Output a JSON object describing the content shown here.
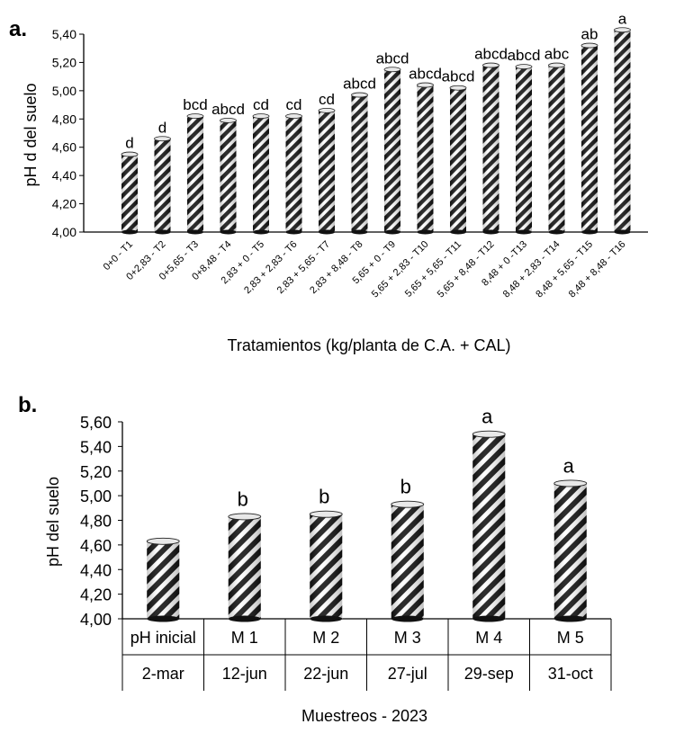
{
  "chart_data": [
    {
      "type": "bar",
      "panel_label": "a.",
      "title": "",
      "xlabel": "Tratamientos (kg/planta de C.A. + CAL)",
      "ylabel": "pH d del suelo",
      "ylim": [
        4.0,
        5.4
      ],
      "yticks": [
        "4,00",
        "4,20",
        "4,40",
        "4,60",
        "4,80",
        "5,00",
        "5,20",
        "5,40"
      ],
      "ytick_values": [
        4.0,
        4.2,
        4.4,
        4.6,
        4.8,
        5.0,
        5.2,
        5.4
      ],
      "grid": false,
      "categories": [
        "0+0 - T1",
        "0+2,83 - T2",
        "0+5,65 - T3",
        "0+8,48 - T4",
        "2,83 + 0 - T5",
        "2,83 + 2,83 - T6",
        "2,83 + 5,65 - T7",
        "2,83 + 8,48 - T8",
        "5,65 + 0 - T9",
        "5,65 + 2,83 - T10",
        "5,65 + 5,65 - T11",
        "5,65 + 8,48 - T12",
        "8,48 + 0 -T13",
        "8,48 + 2,83 - T14",
        "8,48 + 5,65 - T15",
        "8,48 + 8,48 - T16"
      ],
      "values": [
        4.55,
        4.66,
        4.82,
        4.79,
        4.82,
        4.82,
        4.86,
        4.97,
        5.15,
        5.04,
        5.02,
        5.18,
        5.17,
        5.18,
        5.32,
        5.43
      ],
      "annotations": [
        "d",
        "d",
        "bcd",
        "abcd",
        "cd",
        "cd",
        "cd",
        "abcd",
        "abcd",
        "abcd",
        "abcd",
        "abcd",
        "abcd",
        "abc",
        "ab",
        "a"
      ]
    },
    {
      "type": "bar",
      "panel_label": "b.",
      "title": "",
      "xlabel": "Muestreos - 2023",
      "ylabel": "pH del suelo",
      "ylim": [
        4.0,
        5.6
      ],
      "yticks": [
        "4,00",
        "4,20",
        "4,40",
        "4,60",
        "4,80",
        "5,00",
        "5,20",
        "5,40",
        "5,60"
      ],
      "ytick_values": [
        4.0,
        4.2,
        4.4,
        4.6,
        4.8,
        5.0,
        5.2,
        5.4,
        5.6
      ],
      "grid": false,
      "categories": [
        "pH inicial",
        "M 1",
        "M 2",
        "M 3",
        "M 4",
        "M 5"
      ],
      "dates": [
        "2-mar",
        "12-jun",
        "22-jun",
        "27-jul",
        "29-sep",
        "31-oct"
      ],
      "values": [
        4.63,
        4.83,
        4.85,
        4.93,
        5.5,
        5.1
      ],
      "annotations": [
        "",
        "b",
        "b",
        "b",
        "a",
        "a"
      ]
    }
  ]
}
